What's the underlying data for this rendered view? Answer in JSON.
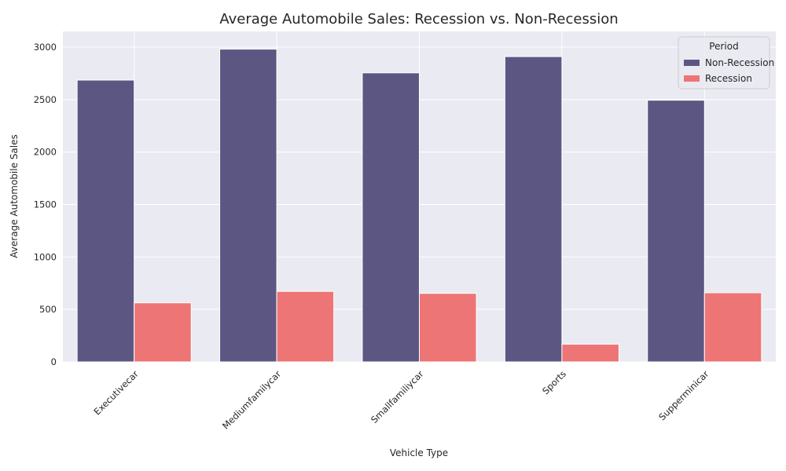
{
  "chart_data": {
    "type": "bar",
    "title": "Average Automobile Sales: Recession vs. Non-Recession",
    "xlabel": "Vehicle Type",
    "ylabel": "Average Automobile Sales",
    "categories": [
      "Executivecar",
      "Mediumfamilycar",
      "Smallfamiliycar",
      "Sports",
      "Supperminicar"
    ],
    "series": [
      {
        "name": "Non-Recession",
        "color": "#5c5782",
        "values": [
          2686,
          2981,
          2755,
          2910,
          2494
        ]
      },
      {
        "name": "Recession",
        "color": "#ed7575",
        "values": [
          563,
          672,
          653,
          169,
          659
        ]
      }
    ],
    "ylim": [
      0,
      3150
    ],
    "yticks": [
      0,
      500,
      1000,
      1500,
      2000,
      2500,
      3000
    ],
    "grid": true,
    "legend": {
      "title": "Period",
      "placement": "top-right"
    }
  }
}
